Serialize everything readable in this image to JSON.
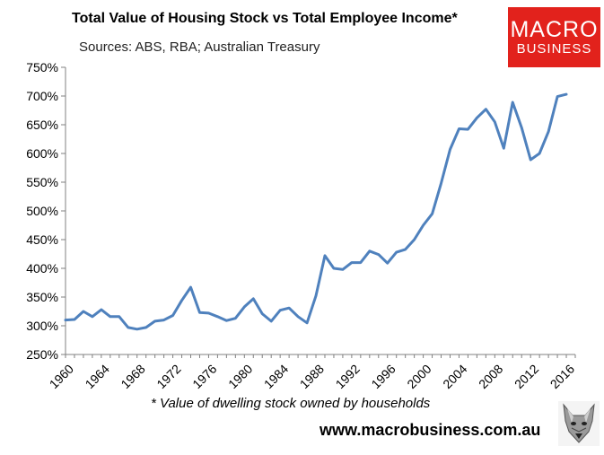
{
  "header": {
    "title": "Total Value of Housing Stock vs Total Employee Income*",
    "subtitle": "Sources: ABS, RBA; Australian Treasury"
  },
  "logo": {
    "line1": "MACRO",
    "line2": "BUSINESS",
    "color": "#e2221c",
    "text_color": "#ffffff"
  },
  "footer": {
    "footnote": "* Value of dwelling stock owned by households",
    "website": "www.macrobusiness.com.au",
    "mascot_icon": "wolf-icon"
  },
  "chart_data": {
    "type": "line",
    "title": "Total Value of Housing Stock vs Total Employee Income*",
    "xlabel": "",
    "ylabel": "",
    "xlim": [
      1960,
      2017
    ],
    "ylim": [
      250,
      750
    ],
    "x_ticks": [
      1960,
      1964,
      1968,
      1972,
      1976,
      1980,
      1984,
      1988,
      1992,
      1996,
      2000,
      2004,
      2008,
      2012,
      2016
    ],
    "x_tick_labels": [
      "1960",
      "1964",
      "1968",
      "1972",
      "1976",
      "1980",
      "1984",
      "1988",
      "1992",
      "1996",
      "2000",
      "2004",
      "2008",
      "2012",
      "2016"
    ],
    "y_ticks": [
      250,
      300,
      350,
      400,
      450,
      500,
      550,
      600,
      650,
      700,
      750
    ],
    "y_tick_labels": [
      "250%",
      "300%",
      "350%",
      "400%",
      "450%",
      "500%",
      "550%",
      "600%",
      "650%",
      "700%",
      "750%"
    ],
    "grid": false,
    "legend": "none",
    "line_color": "#4f81bd",
    "series": [
      {
        "x": [
          1960,
          1961,
          1962,
          1963,
          1964,
          1965,
          1966,
          1967,
          1968,
          1969,
          1970,
          1971,
          1972,
          1973,
          1974,
          1975,
          1976,
          1977,
          1978,
          1979,
          1980,
          1981,
          1982,
          1983,
          1984,
          1985,
          1986,
          1987,
          1988,
          1989,
          1990,
          1991,
          1992,
          1993,
          1994,
          1995,
          1996,
          1997,
          1998,
          1999,
          2000,
          2001,
          2002,
          2003,
          2004,
          2005,
          2006,
          2007,
          2008,
          2009,
          2010,
          2011,
          2012,
          2013,
          2014,
          2015,
          2016
        ],
        "values": [
          310,
          311,
          325,
          316,
          328,
          316,
          316,
          297,
          294,
          297,
          308,
          310,
          318,
          344,
          367,
          323,
          322,
          316,
          309,
          313,
          333,
          347,
          321,
          308,
          327,
          331,
          316,
          305,
          352,
          422,
          400,
          398,
          410,
          410,
          430,
          424,
          409,
          428,
          433,
          450,
          475,
          495,
          548,
          607,
          643,
          642,
          662,
          677,
          655,
          609,
          689,
          645,
          589,
          600,
          638,
          699,
          703
        ]
      }
    ]
  }
}
